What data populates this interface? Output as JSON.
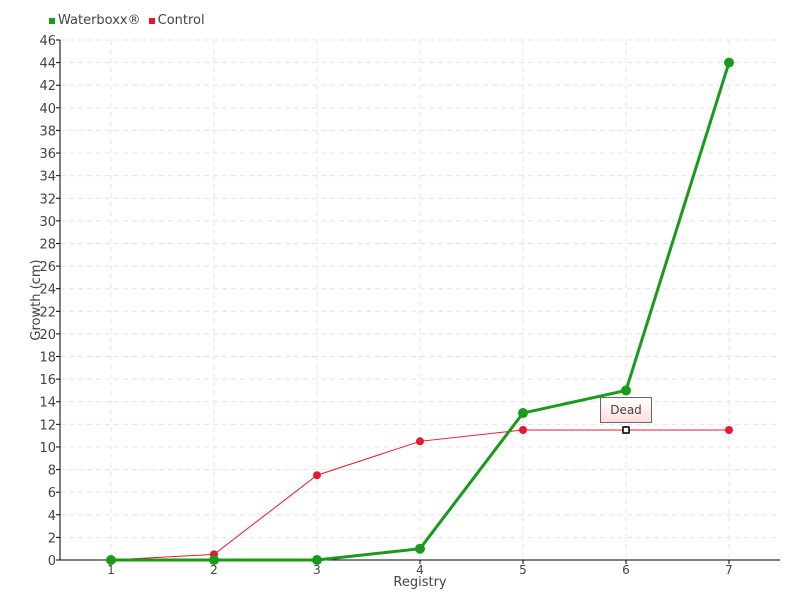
{
  "chart_data": {
    "type": "line",
    "xlabel": "Registry",
    "ylabel": "Growth (cm)",
    "categories": [
      "1",
      "2",
      "3",
      "4",
      "5",
      "6",
      "7"
    ],
    "ylim": [
      0,
      46
    ],
    "yticks": [
      0,
      2,
      4,
      6,
      8,
      10,
      12,
      14,
      16,
      18,
      20,
      22,
      24,
      26,
      28,
      30,
      32,
      34,
      36,
      38,
      40,
      42,
      44,
      46
    ],
    "grid": true,
    "legend_position": "top-left",
    "series": [
      {
        "name": "Waterboxx®",
        "color": "#1a9a1a",
        "values": [
          0,
          0,
          0,
          1,
          13,
          15,
          44
        ]
      },
      {
        "name": "Control",
        "color": "#e8192c",
        "values": [
          0,
          0.5,
          7.5,
          10.5,
          11.5,
          11.5,
          11.5
        ]
      }
    ],
    "annotations": [
      {
        "series": "Control",
        "category": "6",
        "text": "Dead"
      }
    ]
  }
}
